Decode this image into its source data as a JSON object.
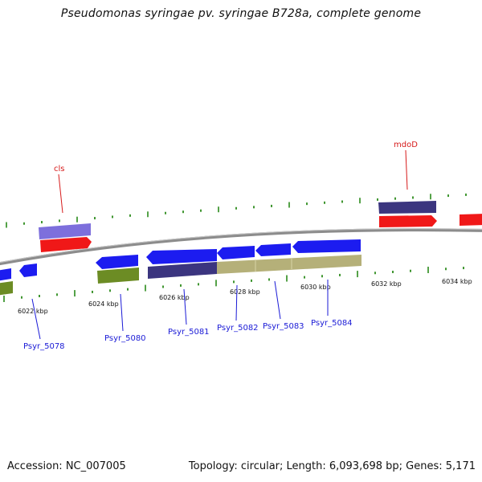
{
  "title": "Pseudomonas syringae pv. syringae B728a, complete genome",
  "footer": {
    "accession": "Accession: NC_007005",
    "summary": "Topology: circular; Length: 6,093,698 bp; Genes: 5,171"
  },
  "colors": {
    "blue_gene": "#1c1cf0",
    "red_gene": "#f01818",
    "purple_gene": "#7d6fdc",
    "navy_gene": "#3b357f",
    "olive_gene": "#6c8c24",
    "khaki_gene": "#b5b079",
    "backbone": "#8c8c8c",
    "tick_green": "#2a8a1a",
    "label_blue": "#1a1ad6",
    "label_red": "#d61a1a"
  },
  "scale": {
    "tick_labels": [
      "6022 kbp",
      "6024 kbp",
      "6026 kbp",
      "6028 kbp",
      "6030 kbp",
      "6032 kbp",
      "6034 kbp"
    ]
  },
  "gene_labels": {
    "cls": "cls",
    "mdoD": "mdoD",
    "psyr_5078": "Psyr_5078",
    "psyr_5080": "Psyr_5080",
    "psyr_5081": "Psyr_5081",
    "psyr_5082": "Psyr_5082",
    "psyr_5083": "Psyr_5083",
    "psyr_5084": "Psyr_5084"
  }
}
